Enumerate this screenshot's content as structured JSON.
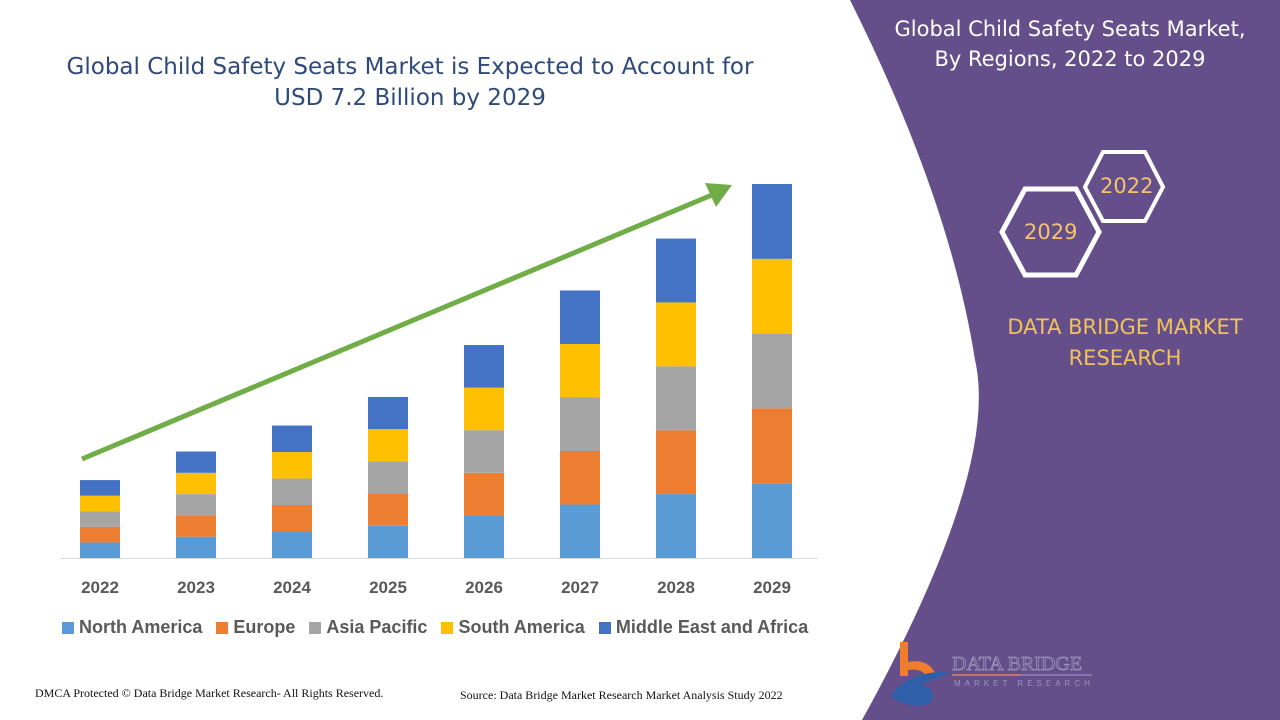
{
  "header": {
    "title": "Global Child Safety Seats Market is Expected to Account for USD 7.2 Billion by 2029"
  },
  "side_panel": {
    "title": "Global Child Safety Seats Market, By Regions, 2022 to 2029",
    "hex_years": [
      "2022",
      "2029"
    ],
    "brand": "DATA BRIDGE MARKET RESEARCH",
    "logo_text": "DATA BRIDGE",
    "logo_sub": "MARKET RESEARCH",
    "color": "#654f8a"
  },
  "footer": {
    "left": "DMCA Protected © Data Bridge Market Research- All Rights Reserved.",
    "right": "Source: Data Bridge Market Research Market Analysis Study 2022"
  },
  "chart_data": {
    "type": "bar",
    "stacked": true,
    "title": "Global Child Safety Seats Market is Expected to Account for USD 7.2 Billion by 2029",
    "categories": [
      "2022",
      "2023",
      "2024",
      "2025",
      "2026",
      "2027",
      "2028",
      "2029"
    ],
    "series": [
      {
        "name": "North America",
        "color": "#5b9bd5",
        "values": [
          0.3,
          0.41,
          0.51,
          0.62,
          0.82,
          1.03,
          1.23,
          1.44
        ]
      },
      {
        "name": "Europe",
        "color": "#ed7d31",
        "values": [
          0.3,
          0.41,
          0.51,
          0.62,
          0.82,
          1.03,
          1.23,
          1.44
        ]
      },
      {
        "name": "Asia Pacific",
        "color": "#a5a5a5",
        "values": [
          0.3,
          0.41,
          0.51,
          0.62,
          0.82,
          1.03,
          1.23,
          1.44
        ]
      },
      {
        "name": "South America",
        "color": "#ffc000",
        "values": [
          0.3,
          0.41,
          0.51,
          0.62,
          0.82,
          1.03,
          1.23,
          1.44
        ]
      },
      {
        "name": "Middle East and Africa",
        "color": "#4472c4",
        "values": [
          0.3,
          0.41,
          0.51,
          0.62,
          0.82,
          1.03,
          1.23,
          1.44
        ]
      }
    ],
    "ylim": [
      0,
      7.2
    ],
    "grid": false,
    "y_axis_shown": false,
    "legend": "bottom",
    "trend_arrow_color": "#70ad47"
  }
}
